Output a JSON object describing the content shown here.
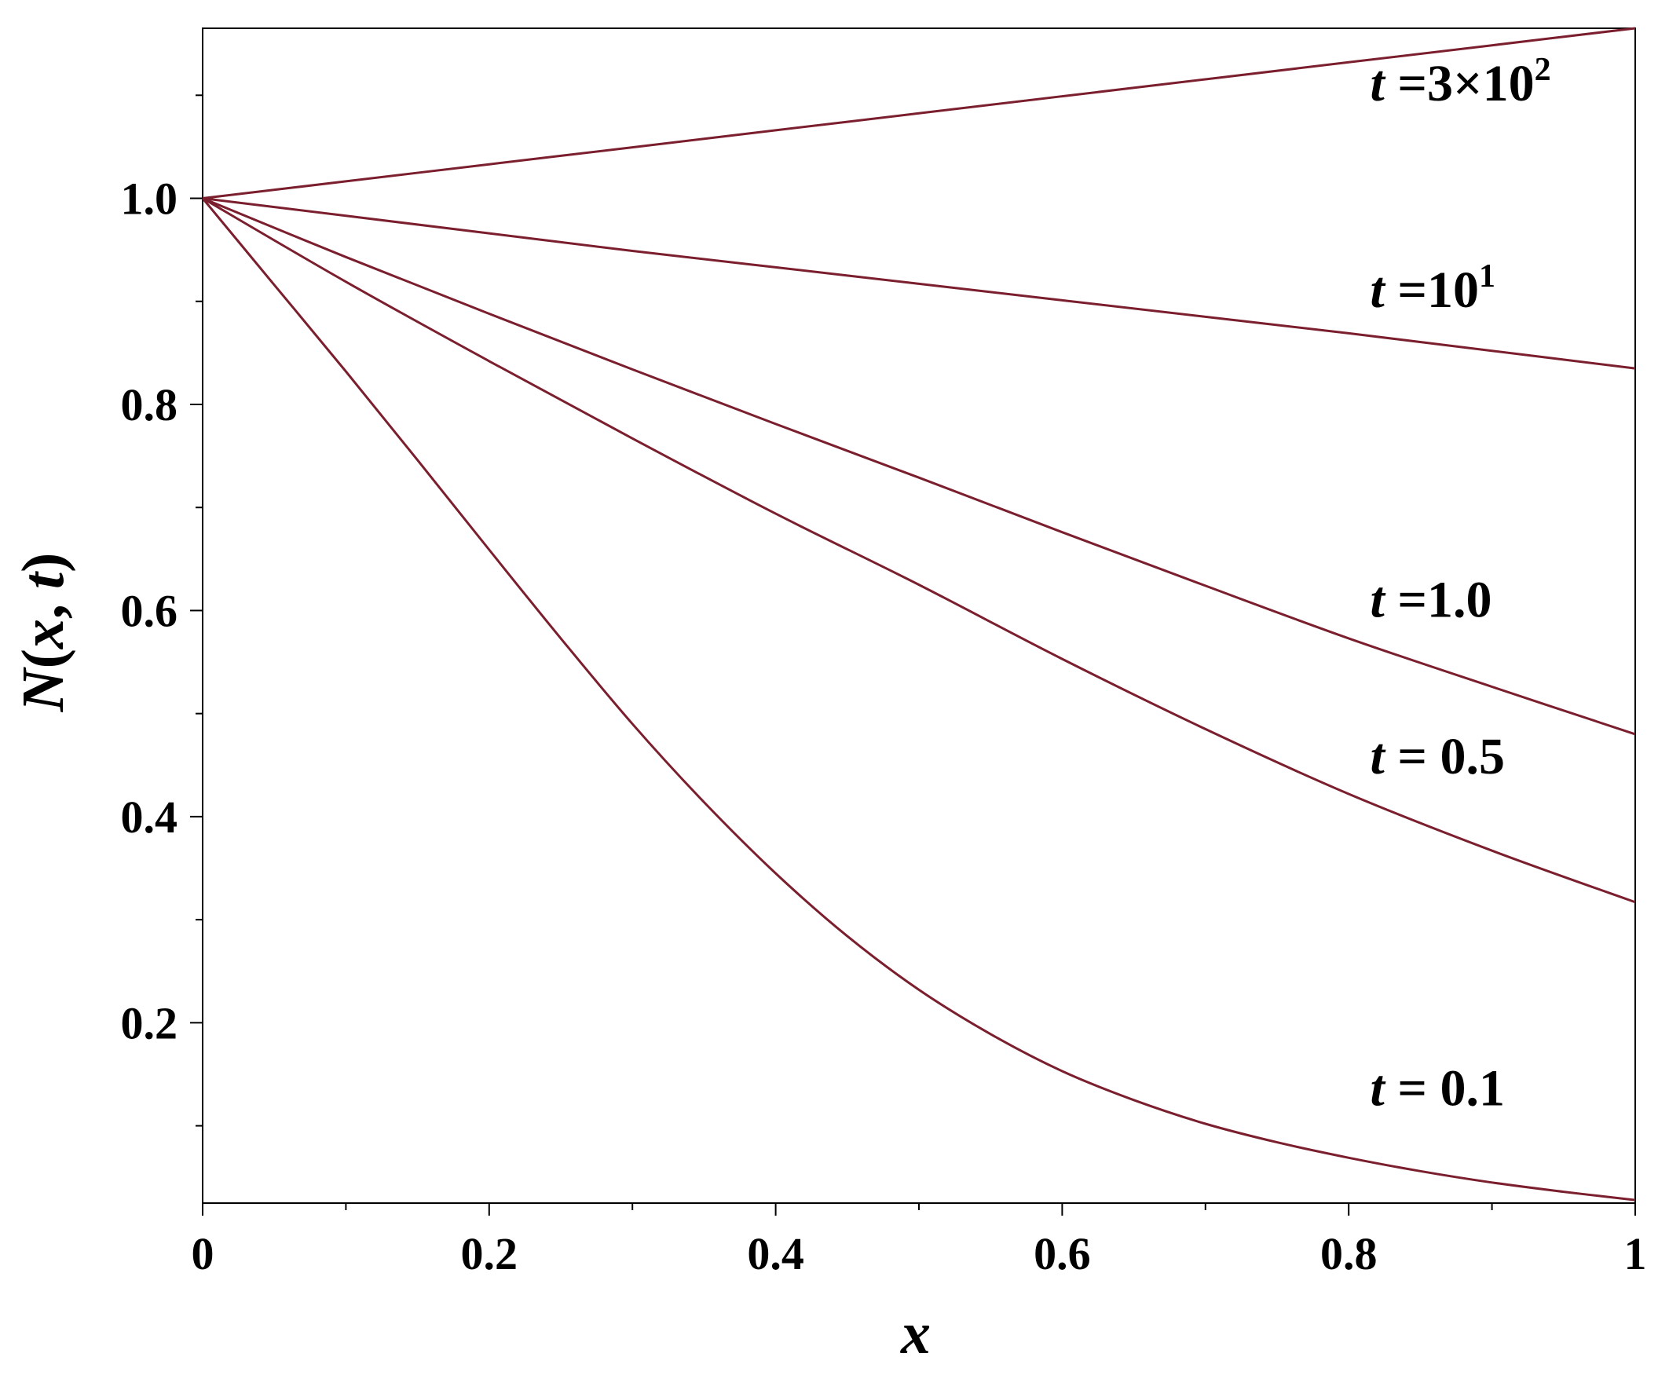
{
  "chart_data": {
    "type": "line",
    "xlabel": "x",
    "ylabel": {
      "func": "N",
      "open": "(",
      "arg1": "x",
      "sep": ",",
      "arg2": "t",
      "close": ")"
    },
    "xlim": [
      0,
      1
    ],
    "ylim": [
      0.025,
      1.165
    ],
    "grid": false,
    "legend": "none",
    "line_color": "#7B1F2E",
    "x_ticks": [
      {
        "value": 0,
        "label": "0"
      },
      {
        "value": 0.2,
        "label": "0.2"
      },
      {
        "value": 0.4,
        "label": "0.4"
      },
      {
        "value": 0.6,
        "label": "0.6"
      },
      {
        "value": 0.8,
        "label": "0.8"
      },
      {
        "value": 1,
        "label": "1"
      }
    ],
    "x_minor_ticks": [
      0.1,
      0.3,
      0.5,
      0.7,
      0.9
    ],
    "y_ticks": [
      {
        "value": 0.2,
        "label": "0.2"
      },
      {
        "value": 0.4,
        "label": "0.4"
      },
      {
        "value": 0.6,
        "label": "0.6"
      },
      {
        "value": 0.8,
        "label": "0.8"
      },
      {
        "value": 1.0,
        "label": "1.0"
      }
    ],
    "y_minor_ticks": [
      0.1,
      0.3,
      0.5,
      0.7,
      0.9,
      1.1
    ],
    "series": [
      {
        "label": {
          "var": "t",
          "eq": " =",
          "text": "3×10",
          "sup": "2"
        },
        "label_at": {
          "x": 0.815,
          "y": 1.095
        },
        "x": [
          0,
          0.1,
          0.2,
          0.3,
          0.4,
          0.5,
          0.6,
          0.7,
          0.8,
          0.9,
          1.0
        ],
        "y": [
          1.0,
          1.0165,
          1.033,
          1.0495,
          1.066,
          1.0825,
          1.099,
          1.1155,
          1.132,
          1.1485,
          1.165
        ]
      },
      {
        "label": {
          "var": "t",
          "eq": " =",
          "text": "10",
          "sup": "1"
        },
        "label_at": {
          "x": 0.815,
          "y": 0.8945
        },
        "x": [
          0,
          0.1,
          0.2,
          0.3,
          0.4,
          0.5,
          0.6,
          0.7,
          0.8,
          0.9,
          1.0
        ],
        "y": [
          1.0,
          0.983,
          0.966,
          0.949,
          0.933,
          0.917,
          0.901,
          0.885,
          0.869,
          0.852,
          0.835
        ]
      },
      {
        "label": {
          "var": "t",
          "eq": " =",
          "text": "1.0",
          "sup": ""
        },
        "label_at": {
          "x": 0.815,
          "y": 0.594
        },
        "x": [
          0,
          0.1,
          0.2,
          0.3,
          0.4,
          0.5,
          0.6,
          0.7,
          0.8,
          0.9,
          1.0
        ],
        "y": [
          1.0,
          0.943,
          0.888,
          0.834,
          0.781,
          0.729,
          0.676,
          0.624,
          0.573,
          0.526,
          0.48
        ]
      },
      {
        "label": {
          "var": "t",
          "eq": " = ",
          "text": "0.5",
          "sup": ""
        },
        "label_at": {
          "x": 0.815,
          "y": 0.442
        },
        "x": [
          0,
          0.1,
          0.2,
          0.3,
          0.4,
          0.5,
          0.6,
          0.7,
          0.8,
          0.9,
          1.0
        ],
        "y": [
          1.0,
          0.919,
          0.842,
          0.767,
          0.694,
          0.625,
          0.553,
          0.485,
          0.422,
          0.367,
          0.317
        ]
      },
      {
        "label": {
          "var": "t",
          "eq": " = ",
          "text": "0.1",
          "sup": ""
        },
        "label_at": {
          "x": 0.815,
          "y": 0.12
        },
        "x": [
          0,
          0.05,
          0.1,
          0.15,
          0.2,
          0.25,
          0.3,
          0.35,
          0.4,
          0.45,
          0.5,
          0.55,
          0.6,
          0.65,
          0.7,
          0.75,
          0.8,
          0.85,
          0.9,
          0.95,
          1.0
        ],
        "y": [
          1.0,
          0.916,
          0.832,
          0.746,
          0.659,
          0.573,
          0.49,
          0.414,
          0.345,
          0.284,
          0.232,
          0.189,
          0.153,
          0.125,
          0.102,
          0.084,
          0.069,
          0.056,
          0.045,
          0.036,
          0.028
        ]
      }
    ]
  }
}
